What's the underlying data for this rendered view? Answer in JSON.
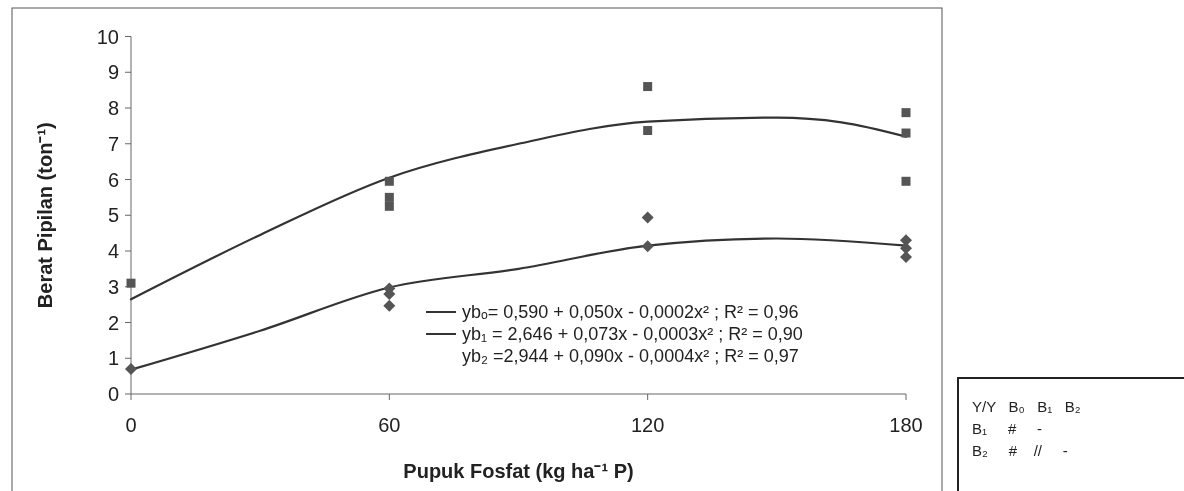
{
  "chart_data": {
    "type": "scatter",
    "xlabel": "Pupuk Fosfat (kg ha⁻¹ P)",
    "ylabel": "Berat Pipilan (ton⁻¹)",
    "xlim": [
      0,
      180
    ],
    "xticks": [
      0,
      60,
      120,
      180
    ],
    "ylim": [
      0,
      10
    ],
    "yticks": [
      0,
      1,
      2,
      3,
      4,
      5,
      6,
      7,
      8,
      9,
      10
    ],
    "grid": false,
    "legend": "bottom right",
    "series": [
      {
        "type": "line",
        "name": "ybₒ= 0,590 + 0,050x - 0,0002x² ; R² = 0,96",
        "color": "#333333",
        "x": [
          0,
          30,
          60,
          90,
          120,
          150,
          180
        ],
        "values": [
          0.68,
          1.77,
          2.98,
          3.5,
          4.15,
          4.35,
          4.15
        ]
      },
      {
        "type": "line",
        "name": "yb₁ = 2,646 + 0,073x - 0,0003x² ; R² = 0,90",
        "color": "#333333",
        "x": [
          0,
          30,
          60,
          90,
          120,
          150,
          165,
          180
        ],
        "values": [
          2.65,
          4.45,
          6.05,
          7.0,
          7.62,
          7.73,
          7.6,
          7.2
        ]
      },
      {
        "type": "scatter",
        "marker": "square",
        "color": "#555555",
        "x": [
          0,
          60,
          60,
          60,
          120,
          120,
          180,
          180,
          180
        ],
        "values": [
          3.1,
          5.95,
          5.5,
          5.25,
          8.6,
          7.37,
          7.87,
          7.3,
          5.95
        ]
      },
      {
        "type": "scatter",
        "marker": "diamond",
        "color": "#555555",
        "x": [
          0,
          60,
          60,
          60,
          120,
          120,
          180,
          180,
          180
        ],
        "values": [
          0.7,
          2.95,
          2.8,
          2.47,
          4.94,
          4.13,
          4.3,
          4.08,
          3.83
        ]
      }
    ],
    "annotations": [
      "yb₂ =2,944 + 0,090x - 0,0004x² ; R² = 0,97",
      "Y/Y   B₀   B₁   B₂",
      "B₁     #     -",
      "B₂     #    //     -"
    ]
  }
}
